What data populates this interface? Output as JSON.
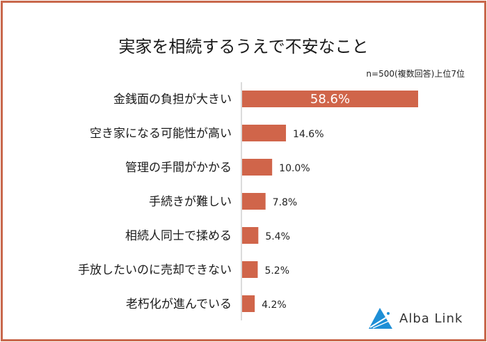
{
  "chart_data": {
    "type": "bar",
    "orientation": "horizontal",
    "title": "実家を相続するうえで不安なこと",
    "subtitle": "n=500(複数回答)上位7位",
    "categories": [
      "金銭面の負担が大きい",
      "空き家になる可能性が高い",
      "管理の手間がかかる",
      "手続きが難しい",
      "相続人同士で揉める",
      "手放したいのに売却できない",
      "老朽化が進んでいる"
    ],
    "values": [
      58.6,
      14.6,
      10.0,
      7.8,
      5.4,
      5.2,
      4.2
    ],
    "data_labels": [
      "58.6%",
      "14.6%",
      "10.0%",
      "7.8%",
      "5.4%",
      "5.2%",
      "4.2%"
    ],
    "xlabel": "",
    "ylabel": "",
    "grid": false,
    "bar_color": "#d0654a",
    "border_color": "#c8674b"
  },
  "brand": {
    "name": "Alba Link",
    "logo_color": "#1e8fd6"
  }
}
